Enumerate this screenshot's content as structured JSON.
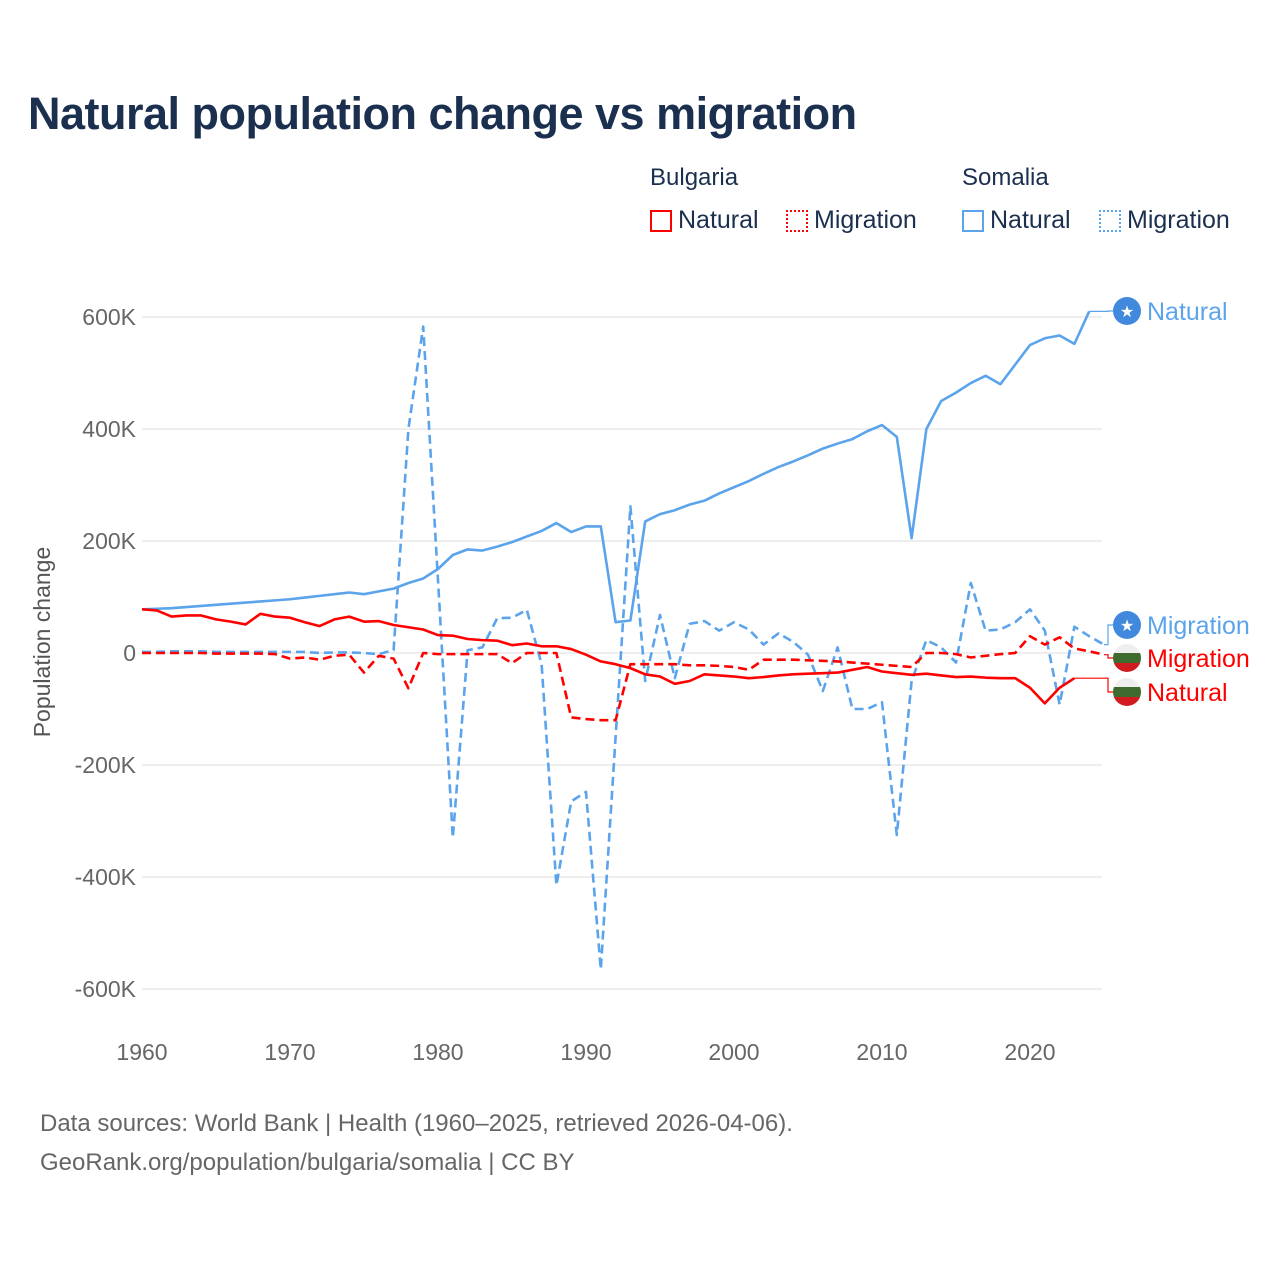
{
  "title": "Natural population change vs migration",
  "legend": {
    "groups": [
      {
        "name": "Bulgaria",
        "items": [
          {
            "label": "Natural",
            "color": "#ff0000",
            "style": "solid"
          },
          {
            "label": "Migration",
            "color": "#ff0000",
            "style": "dotted"
          }
        ]
      },
      {
        "name": "Somalia",
        "items": [
          {
            "label": "Natural",
            "color": "#5ba4ec",
            "style": "solid"
          },
          {
            "label": "Migration",
            "color": "#5ba4ec",
            "style": "dotted"
          }
        ]
      }
    ]
  },
  "source": [
    "Data sources: World Bank | Health (1960–2025, retrieved 2026-04-06).",
    "GeoRank.org/population/bulgaria/somalia | CC BY"
  ],
  "chart_data": {
    "type": "line",
    "title": "Natural population change vs migration",
    "xlabel": "",
    "ylabel": "Population change",
    "xlim": [
      1960,
      2025
    ],
    "ylim": [
      -600000,
      600000
    ],
    "xticks": [
      1960,
      1970,
      1980,
      1990,
      2000,
      2010,
      2020
    ],
    "yticks": [
      {
        "v": 600,
        "label": "600K"
      },
      {
        "v": 400,
        "label": "400K"
      },
      {
        "v": 200,
        "label": "200K"
      },
      {
        "v": 0,
        "label": "0"
      },
      {
        "v": -200,
        "label": "-200K"
      },
      {
        "v": -400,
        "label": "-400K"
      },
      {
        "v": -600,
        "label": "-600K"
      }
    ],
    "units": "thousands",
    "grid": true,
    "series": [
      {
        "name": "Somalia Natural",
        "end_label": "Natural",
        "country": "Somalia",
        "color": "#5ba4ec",
        "dash": false,
        "start": 1960,
        "values": [
          78,
          79,
          80,
          82,
          84,
          86,
          88,
          90,
          92,
          94,
          96,
          99,
          102,
          105,
          108,
          105,
          110,
          115,
          125,
          133,
          150,
          175,
          185,
          183,
          190,
          198,
          208,
          218,
          232,
          216,
          226,
          226,
          55,
          58,
          235,
          248,
          255,
          265,
          272,
          285,
          296,
          307,
          320,
          332,
          342,
          353,
          365,
          374,
          382,
          396,
          407,
          386,
          205,
          400,
          450,
          465,
          482,
          495,
          480,
          515,
          550,
          562,
          567,
          552,
          610
        ]
      },
      {
        "name": "Somalia Migration",
        "end_label": "Migration",
        "country": "Somalia",
        "color": "#5ba4ec",
        "dash": true,
        "start": 1960,
        "values": [
          2,
          2,
          3,
          3,
          3,
          2,
          2,
          2,
          2,
          2,
          2,
          2,
          0,
          1,
          1,
          0,
          -2,
          5,
          400,
          583,
          130,
          -330,
          5,
          10,
          62,
          63,
          77,
          -20,
          -415,
          -265,
          -248,
          -565,
          -150,
          262,
          -50,
          68,
          -45,
          52,
          57,
          40,
          55,
          42,
          15,
          35,
          20,
          -3,
          -68,
          10,
          -100,
          -100,
          -88,
          -325,
          -50,
          23,
          10,
          -17,
          125,
          40,
          42,
          55,
          78,
          40,
          -92,
          47,
          30,
          15
        ]
      },
      {
        "name": "Bulgaria Migration",
        "end_label": "Migration",
        "country": "Bulgaria",
        "color": "#ff0000",
        "dash": true,
        "start": 1960,
        "values": [
          0,
          0,
          0,
          0,
          0,
          -1,
          -1,
          -1,
          -1,
          -2,
          -10,
          -8,
          -12,
          -5,
          -3,
          -35,
          -5,
          -10,
          -63,
          0,
          -2,
          -2,
          -2,
          -2,
          -2,
          -18,
          0,
          0,
          0,
          -115,
          -118,
          -120,
          -120,
          -20,
          -20,
          -20,
          -20,
          -22,
          -22,
          -23,
          -25,
          -30,
          -12,
          -12,
          -12,
          -13,
          -14,
          -15,
          -17,
          -19,
          -21,
          -23,
          -25,
          0,
          0,
          -2,
          -8,
          -5,
          -2,
          0,
          30,
          15,
          28,
          8,
          3,
          -3
        ]
      },
      {
        "name": "Bulgaria Natural",
        "end_label": "Natural",
        "country": "Bulgaria",
        "color": "#ff0000",
        "dash": false,
        "start": 1960,
        "values": [
          78,
          76,
          65,
          67,
          67,
          60,
          56,
          51,
          70,
          65,
          63,
          55,
          48,
          60,
          65,
          56,
          57,
          50,
          46,
          42,
          32,
          31,
          25,
          23,
          22,
          14,
          17,
          12,
          12,
          7,
          -3,
          -15,
          -20,
          -27,
          -38,
          -42,
          -55,
          -50,
          -38,
          -40,
          -42,
          -45,
          -43,
          -40,
          -38,
          -37,
          -36,
          -35,
          -30,
          -25,
          -33,
          -36,
          -39,
          -37,
          -40,
          -43,
          -42,
          -44,
          -45,
          -45,
          -62,
          -90,
          -62,
          -45
        ]
      }
    ]
  }
}
